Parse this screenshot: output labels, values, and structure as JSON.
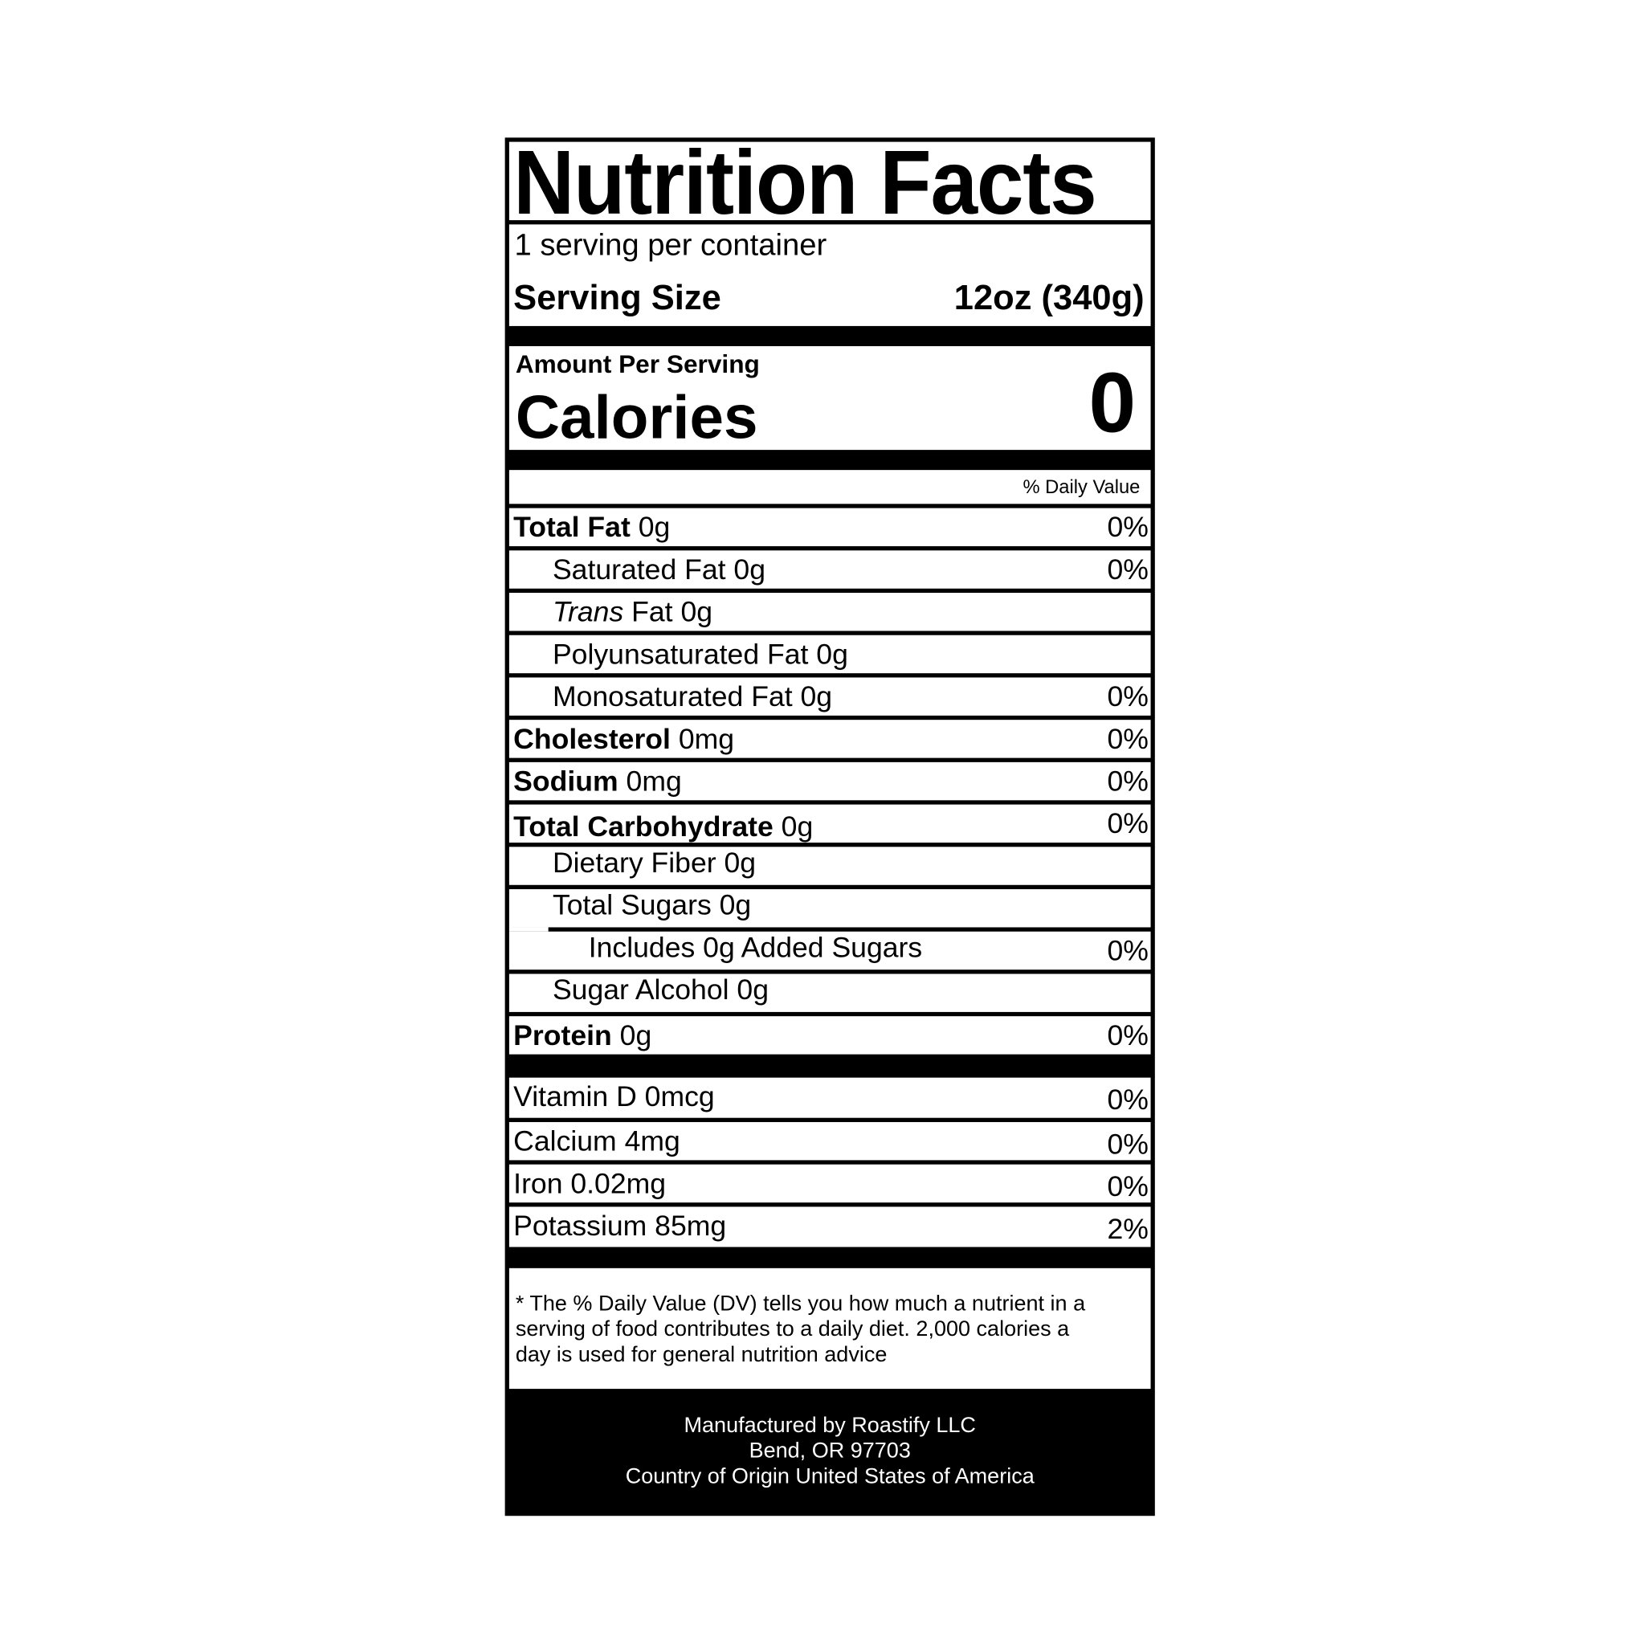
{
  "title": "Nutrition Facts",
  "servings_per_container": "1 serving per container",
  "serving_size_label": "Serving Size",
  "serving_size_value": "12oz (340g)",
  "amount_per_serving": "Amount Per Serving",
  "calories_label": "Calories",
  "calories_value": "0",
  "daily_value_header": "% Daily Value",
  "nutrients": [
    {
      "name": "Total Fat",
      "amount": "0g",
      "dv": "0%"
    },
    {
      "name": "Saturated Fat 0g",
      "dv": "0%"
    },
    {
      "name_italic": "Trans",
      "name": " Fat 0g"
    },
    {
      "name": "Polyunsaturated Fat 0g"
    },
    {
      "name": "Monosaturated Fat 0g",
      "dv": "0%"
    },
    {
      "name": "Cholesterol",
      "amount": "0mg",
      "dv": "0%"
    },
    {
      "name": "Sodium",
      "amount": "0mg",
      "dv": "0%"
    },
    {
      "name": "Total Carbohydrate",
      "amount": "0g",
      "dv": "0%"
    },
    {
      "name": "Dietary Fiber 0g"
    },
    {
      "name": "Total Sugars 0g"
    },
    {
      "name": "Includes 0g Added Sugars",
      "dv": "0%"
    },
    {
      "name": "Sugar Alcohol 0g"
    },
    {
      "name": "Protein",
      "amount": "0g",
      "dv": "0%"
    }
  ],
  "vitamins": [
    {
      "name": "Vitamin D 0mcg",
      "dv": "0%"
    },
    {
      "name": "Calcium 4mg",
      "dv": "0%"
    },
    {
      "name": "Iron 0.02mg",
      "dv": "0%"
    },
    {
      "name": "Potassium 85mg",
      "dv": "2%"
    }
  ],
  "footnote": "* The % Daily Value (DV) tells you how much a nutrient in a serving of food contributes to a daily diet. 2,000 calories a day is used for general nutrition advice",
  "manufacturer": {
    "line1": "Manufactured by Roastify LLC",
    "line2": "Bend, OR 97703",
    "line3": "Country of Origin United States of America"
  }
}
